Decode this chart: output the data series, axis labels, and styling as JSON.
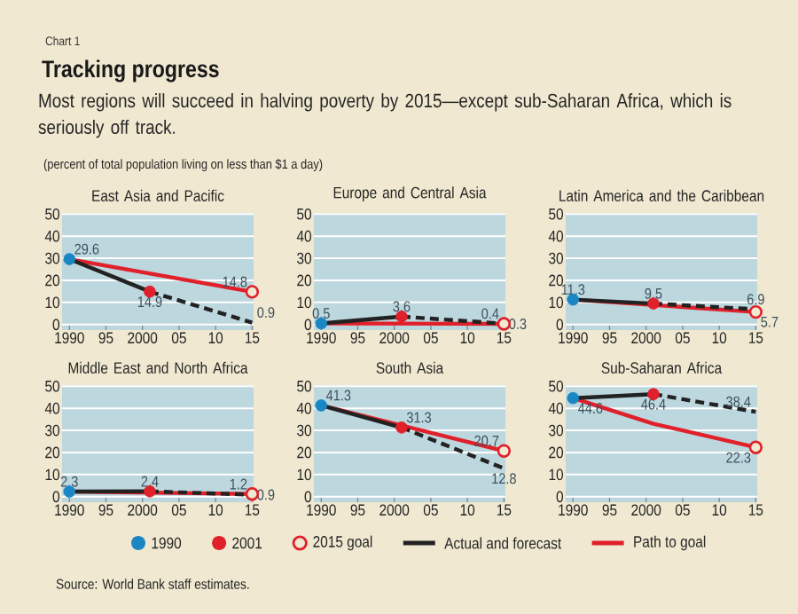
{
  "chart_data": [
    {
      "type": "other",
      "title": "Tracking progress",
      "subtitle": "Most regions will succeed in halving poverty by 2015—except sub-Saharan Africa, which is seriously off track.",
      "annotations": [
        "Chart 1",
        "(percent of total population living on less than $1 a day)",
        "Source: World Bank staff estimates."
      ]
    },
    {
      "type": "line",
      "title": "East Asia and Pacific",
      "legend": "bottom",
      "grid": "y",
      "xlim": [
        1989,
        2015.2
      ],
      "ylim": [
        -2.5,
        50.5
      ],
      "xticks": [
        1990,
        {
          "value": 1995,
          "label": "95"
        },
        2000,
        {
          "value": 2005,
          "label": "05"
        },
        {
          "value": 2010,
          "label": "10"
        },
        {
          "value": 2015,
          "label": "15"
        }
      ],
      "yticks": [
        0,
        10,
        20,
        30,
        40,
        50
      ],
      "series": [
        {
          "name": "1990",
          "type": "scatter",
          "marker": "circle",
          "color": "#1a86c4",
          "x": [
            1990
          ],
          "values": [
            29.6
          ],
          "value_labels": [
            "29.6"
          ]
        },
        {
          "name": "2001",
          "type": "scatter",
          "marker": "circle",
          "color": "#e0202a",
          "x": [
            2001
          ],
          "values": [
            14.9
          ],
          "value_labels": [
            "14.9"
          ]
        },
        {
          "name": "2015 goal",
          "type": "scatter",
          "marker": "circle-open",
          "color": "#e0202a",
          "x": [
            2015
          ],
          "values": [
            14.8
          ],
          "value_labels": [
            "14.8"
          ]
        },
        {
          "name": "Actual and forecast",
          "type": "line",
          "line_style": "solid",
          "color": "#222222",
          "x": [
            1990,
            2001
          ],
          "values": [
            29.6,
            14.9
          ]
        },
        {
          "type": "line",
          "line_style": "dashed",
          "color": "#222222",
          "x": [
            2001,
            2015
          ],
          "values": [
            14.9,
            0.9
          ],
          "value_labels": [
            null,
            "0.9"
          ]
        },
        {
          "name": "Path to goal",
          "type": "line",
          "line_style": "solid",
          "color": "#e0202a",
          "x": [
            1990,
            2015
          ],
          "values": [
            29.6,
            14.8
          ]
        }
      ]
    },
    {
      "type": "line",
      "title": "Europe and Central Asia",
      "grid": "y",
      "xlim": [
        1989,
        2015.2
      ],
      "ylim": [
        -2.5,
        50.5
      ],
      "xticks": [
        1990,
        {
          "value": 1995,
          "label": "95"
        },
        2000,
        {
          "value": 2005,
          "label": "05"
        },
        {
          "value": 2010,
          "label": "10"
        },
        {
          "value": 2015,
          "label": "15"
        }
      ],
      "yticks": [
        0,
        10,
        20,
        30,
        40,
        50
      ],
      "series": [
        {
          "type": "scatter",
          "marker": "circle",
          "color": "#1a86c4",
          "x": [
            1990
          ],
          "values": [
            0.5
          ],
          "value_labels": [
            "0.5"
          ]
        },
        {
          "type": "scatter",
          "marker": "circle",
          "color": "#e0202a",
          "x": [
            2001
          ],
          "values": [
            3.6
          ],
          "value_labels": [
            "3.6"
          ]
        },
        {
          "type": "scatter",
          "marker": "circle-open",
          "color": "#e0202a",
          "x": [
            2015
          ],
          "values": [
            0.3
          ],
          "value_labels": [
            "0.3"
          ]
        },
        {
          "type": "line",
          "line_style": "solid",
          "color": "#222222",
          "x": [
            1990,
            2001
          ],
          "values": [
            0.5,
            3.6
          ]
        },
        {
          "type": "line",
          "line_style": "dashed",
          "color": "#222222",
          "x": [
            2001,
            2015
          ],
          "values": [
            3.6,
            0.4
          ],
          "value_labels": [
            null,
            "0.4"
          ]
        },
        {
          "type": "line",
          "line_style": "solid",
          "color": "#e0202a",
          "x": [
            1990,
            2015
          ],
          "values": [
            0.5,
            0.3
          ]
        }
      ]
    },
    {
      "type": "line",
      "title": "Latin America and the Caribbean",
      "grid": "y",
      "xlim": [
        1989,
        2015.2
      ],
      "ylim": [
        -2.5,
        50.5
      ],
      "xticks": [
        1990,
        {
          "value": 1995,
          "label": "95"
        },
        2000,
        {
          "value": 2005,
          "label": "05"
        },
        {
          "value": 2010,
          "label": "10"
        },
        {
          "value": 2015,
          "label": "15"
        }
      ],
      "yticks": [
        0,
        10,
        20,
        30,
        40,
        50
      ],
      "series": [
        {
          "type": "scatter",
          "marker": "circle",
          "color": "#1a86c4",
          "x": [
            1990
          ],
          "values": [
            11.3
          ],
          "value_labels": [
            "11.3"
          ]
        },
        {
          "type": "scatter",
          "marker": "circle",
          "color": "#e0202a",
          "x": [
            2001
          ],
          "values": [
            9.5
          ],
          "value_labels": [
            "9.5"
          ]
        },
        {
          "type": "scatter",
          "marker": "circle-open",
          "color": "#e0202a",
          "x": [
            2015
          ],
          "values": [
            5.7
          ],
          "value_labels": [
            "5.7"
          ]
        },
        {
          "type": "line",
          "line_style": "solid",
          "color": "#222222",
          "x": [
            1990,
            2001
          ],
          "values": [
            11.3,
            9.5
          ]
        },
        {
          "type": "line",
          "line_style": "dashed",
          "color": "#222222",
          "x": [
            2001,
            2015
          ],
          "values": [
            9.5,
            6.9
          ],
          "value_labels": [
            null,
            "6.9"
          ]
        },
        {
          "type": "line",
          "line_style": "solid",
          "color": "#e0202a",
          "x": [
            1990,
            2015
          ],
          "values": [
            11.3,
            5.7
          ]
        }
      ]
    },
    {
      "type": "line",
      "title": "Middle East and North Africa",
      "grid": "y",
      "xlim": [
        1989,
        2015.2
      ],
      "ylim": [
        -2.5,
        50.5
      ],
      "xticks": [
        1990,
        {
          "value": 1995,
          "label": "95"
        },
        2000,
        {
          "value": 2005,
          "label": "05"
        },
        {
          "value": 2010,
          "label": "10"
        },
        {
          "value": 2015,
          "label": "15"
        }
      ],
      "yticks": [
        0,
        10,
        20,
        30,
        40,
        50
      ],
      "series": [
        {
          "type": "scatter",
          "marker": "circle",
          "color": "#1a86c4",
          "x": [
            1990
          ],
          "values": [
            2.3
          ],
          "value_labels": [
            "2.3"
          ]
        },
        {
          "type": "scatter",
          "marker": "circle",
          "color": "#e0202a",
          "x": [
            2001
          ],
          "values": [
            2.4
          ],
          "value_labels": [
            "2.4"
          ]
        },
        {
          "type": "scatter",
          "marker": "circle-open",
          "color": "#e0202a",
          "x": [
            2015
          ],
          "values": [
            1.2
          ],
          "value_labels": [
            "1.2"
          ]
        },
        {
          "type": "line",
          "line_style": "solid",
          "color": "#222222",
          "x": [
            1990,
            2001
          ],
          "values": [
            2.3,
            2.4
          ]
        },
        {
          "type": "line",
          "line_style": "dashed",
          "color": "#222222",
          "x": [
            2001,
            2015
          ],
          "values": [
            2.4,
            0.9
          ],
          "value_labels": [
            null,
            "0.9"
          ]
        },
        {
          "type": "line",
          "line_style": "solid",
          "color": "#e0202a",
          "x": [
            1990,
            2015
          ],
          "values": [
            2.3,
            1.2
          ]
        }
      ]
    },
    {
      "type": "line",
      "title": "South Asia",
      "grid": "y",
      "xlim": [
        1989,
        2015.2
      ],
      "ylim": [
        -2.5,
        50.5
      ],
      "xticks": [
        1990,
        {
          "value": 1995,
          "label": "95"
        },
        2000,
        {
          "value": 2005,
          "label": "05"
        },
        {
          "value": 2010,
          "label": "10"
        },
        {
          "value": 2015,
          "label": "15"
        }
      ],
      "yticks": [
        0,
        10,
        20,
        30,
        40,
        50
      ],
      "series": [
        {
          "type": "scatter",
          "marker": "circle",
          "color": "#1a86c4",
          "x": [
            1990
          ],
          "values": [
            41.3
          ],
          "value_labels": [
            "41.3"
          ]
        },
        {
          "type": "scatter",
          "marker": "circle",
          "color": "#e0202a",
          "x": [
            2001
          ],
          "values": [
            31.3
          ],
          "value_labels": [
            "31.3"
          ]
        },
        {
          "type": "scatter",
          "marker": "circle-open",
          "color": "#e0202a",
          "x": [
            2015
          ],
          "values": [
            20.7
          ],
          "value_labels": [
            "20.7"
          ]
        },
        {
          "type": "line",
          "line_style": "solid",
          "color": "#222222",
          "x": [
            1990,
            2001
          ],
          "values": [
            41.3,
            31.3
          ]
        },
        {
          "type": "line",
          "line_style": "dashed",
          "color": "#222222",
          "x": [
            2001,
            2015
          ],
          "values": [
            31.3,
            12.8
          ],
          "value_labels": [
            null,
            "12.8"
          ]
        },
        {
          "type": "line",
          "line_style": "solid",
          "color": "#e0202a",
          "x": [
            1990,
            2015
          ],
          "values": [
            41.3,
            20.7
          ]
        }
      ]
    },
    {
      "type": "line",
      "title": "Sub-Saharan Africa",
      "grid": "y",
      "xlim": [
        1989,
        2015.2
      ],
      "ylim": [
        -2.5,
        50.5
      ],
      "xticks": [
        1990,
        {
          "value": 1995,
          "label": "95"
        },
        2000,
        {
          "value": 2005,
          "label": "05"
        },
        {
          "value": 2010,
          "label": "10"
        },
        {
          "value": 2015,
          "label": "15"
        }
      ],
      "yticks": [
        0,
        10,
        20,
        30,
        40,
        50
      ],
      "series": [
        {
          "type": "scatter",
          "marker": "circle",
          "color": "#1a86c4",
          "x": [
            1990
          ],
          "values": [
            44.6
          ],
          "value_labels": [
            "44.6"
          ]
        },
        {
          "type": "scatter",
          "marker": "circle",
          "color": "#e0202a",
          "x": [
            2001
          ],
          "values": [
            46.4
          ],
          "value_labels": [
            "46.4"
          ]
        },
        {
          "type": "scatter",
          "marker": "circle-open",
          "color": "#e0202a",
          "x": [
            2015
          ],
          "values": [
            22.3
          ],
          "value_labels": [
            "22.3"
          ]
        },
        {
          "type": "line",
          "line_style": "solid",
          "color": "#222222",
          "x": [
            1990,
            2001
          ],
          "values": [
            44.6,
            46.4
          ]
        },
        {
          "type": "line",
          "line_style": "dashed",
          "color": "#222222",
          "x": [
            2001,
            2015
          ],
          "values": [
            46.4,
            38.4
          ],
          "value_labels": [
            null,
            "38.4"
          ]
        },
        {
          "type": "line",
          "line_style": "solid",
          "color": "#e0202a",
          "x": [
            1990,
            2001,
            2015
          ],
          "values": [
            44.6,
            33,
            22.3
          ]
        }
      ]
    }
  ]
}
